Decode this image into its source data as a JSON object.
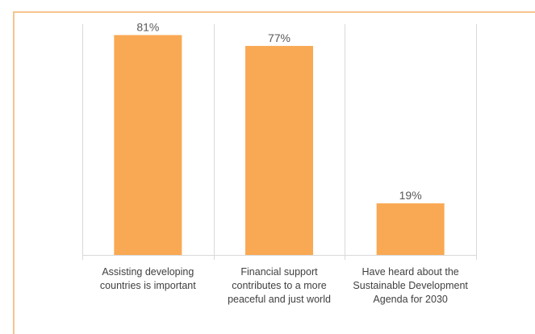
{
  "chart_data": {
    "type": "bar",
    "categories": [
      "Assisting developing countries is important",
      "Financial support contributes to a more peaceful and just world",
      "Have heard about the Sustainable Development Agenda for 2030"
    ],
    "category_lines": [
      [
        "Assisting developing",
        "countries is important"
      ],
      [
        "Financial support",
        "contributes to a more",
        "peaceful and just world"
      ],
      [
        "Have heard about the",
        "Sustainable Development",
        "Agenda for 2030"
      ]
    ],
    "values": [
      81,
      77,
      19
    ],
    "data_labels": [
      "81%",
      "77%",
      "19%"
    ],
    "ylim": [
      0,
      85
    ],
    "bar_color": "#f9a953",
    "grid": false,
    "legend": "none"
  }
}
